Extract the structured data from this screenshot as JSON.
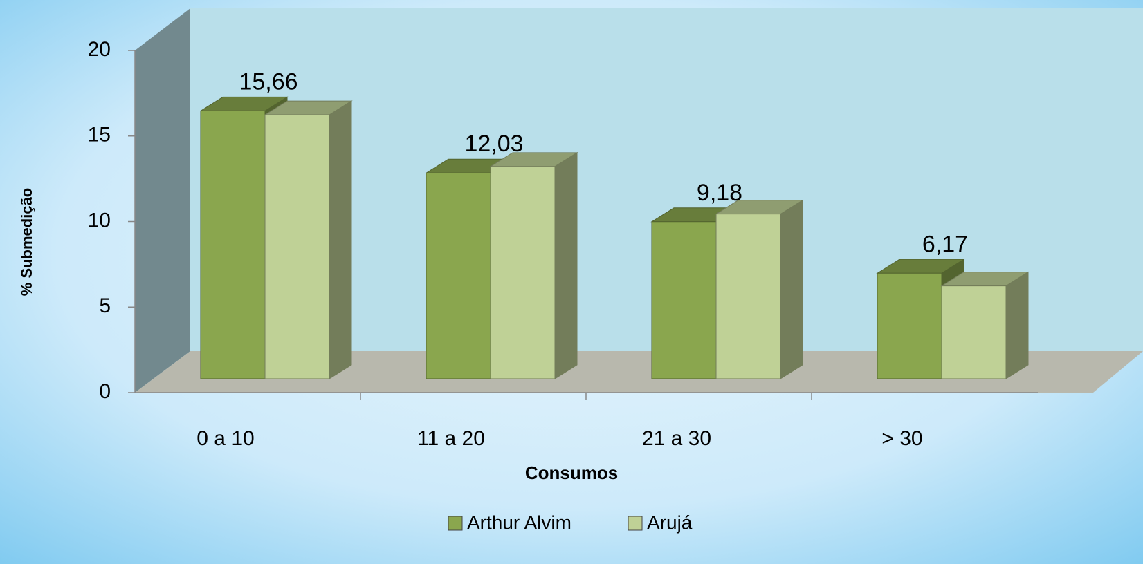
{
  "chart_data": {
    "type": "bar3d",
    "x_label": "Consumos",
    "y_label": "% Submedição",
    "categories": [
      "0 a 10",
      "11 a 20",
      "21 a 30",
      "> 30"
    ],
    "series": [
      {
        "name": "Arthur Alvim",
        "color": "#8aa64e",
        "values": [
          15.66,
          12.03,
          9.18,
          6.17
        ],
        "value_labels": [
          "15,66",
          "12,03",
          "9,18",
          "6,17"
        ]
      },
      {
        "name": "Arujá",
        "color": "#bfd196",
        "values": [
          15.43,
          12.41,
          9.63,
          5.43
        ]
      }
    ],
    "ylim": [
      0,
      20
    ],
    "yticks": [
      0,
      5,
      10,
      15,
      20
    ],
    "legend": "bottom"
  }
}
